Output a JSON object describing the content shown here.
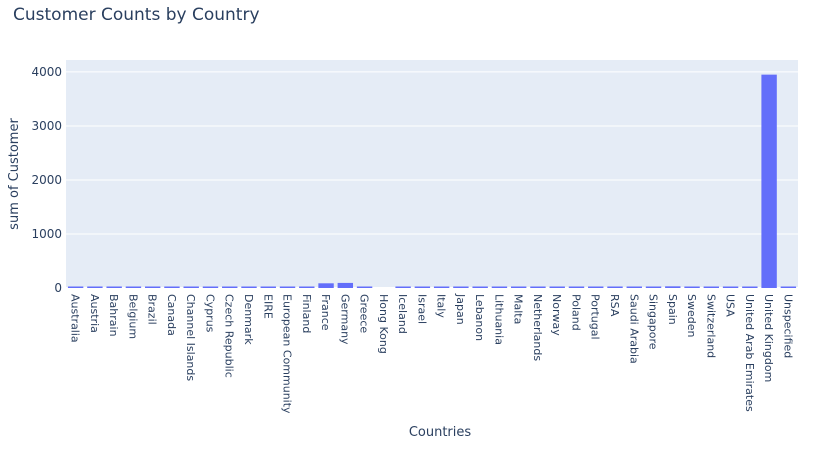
{
  "chart_data": {
    "type": "bar",
    "title": "Customer Counts by Country",
    "xlabel": "Countries",
    "ylabel": "sum of Customer",
    "ylim": [
      0,
      4221
    ],
    "yticks": [
      0,
      1000,
      2000,
      3000,
      4000
    ],
    "grid": true,
    "bar_color": "#636efa",
    "plot_bg": "#e5ecf6",
    "categories": [
      "Australia",
      "Austria",
      "Bahrain",
      "Belgium",
      "Brazil",
      "Canada",
      "Channel Islands",
      "Cyprus",
      "Czech Republic",
      "Denmark",
      "EIRE",
      "European Community",
      "Finland",
      "France",
      "Germany",
      "Greece",
      "Hong Kong",
      "Iceland",
      "Israel",
      "Italy",
      "Japan",
      "Lebanon",
      "Lithuania",
      "Malta",
      "Netherlands",
      "Norway",
      "Poland",
      "Portugal",
      "RSA",
      "Saudi Arabia",
      "Singapore",
      "Spain",
      "Sweden",
      "Switzerland",
      "USA",
      "United Arab Emirates",
      "United Kingdom",
      "Unspecified"
    ],
    "values": [
      9,
      11,
      2,
      25,
      1,
      4,
      9,
      8,
      1,
      9,
      3,
      1,
      12,
      87,
      94,
      4,
      0,
      1,
      4,
      15,
      8,
      1,
      1,
      2,
      9,
      10,
      6,
      19,
      1,
      1,
      1,
      31,
      8,
      21,
      4,
      2,
      3950,
      4
    ]
  }
}
